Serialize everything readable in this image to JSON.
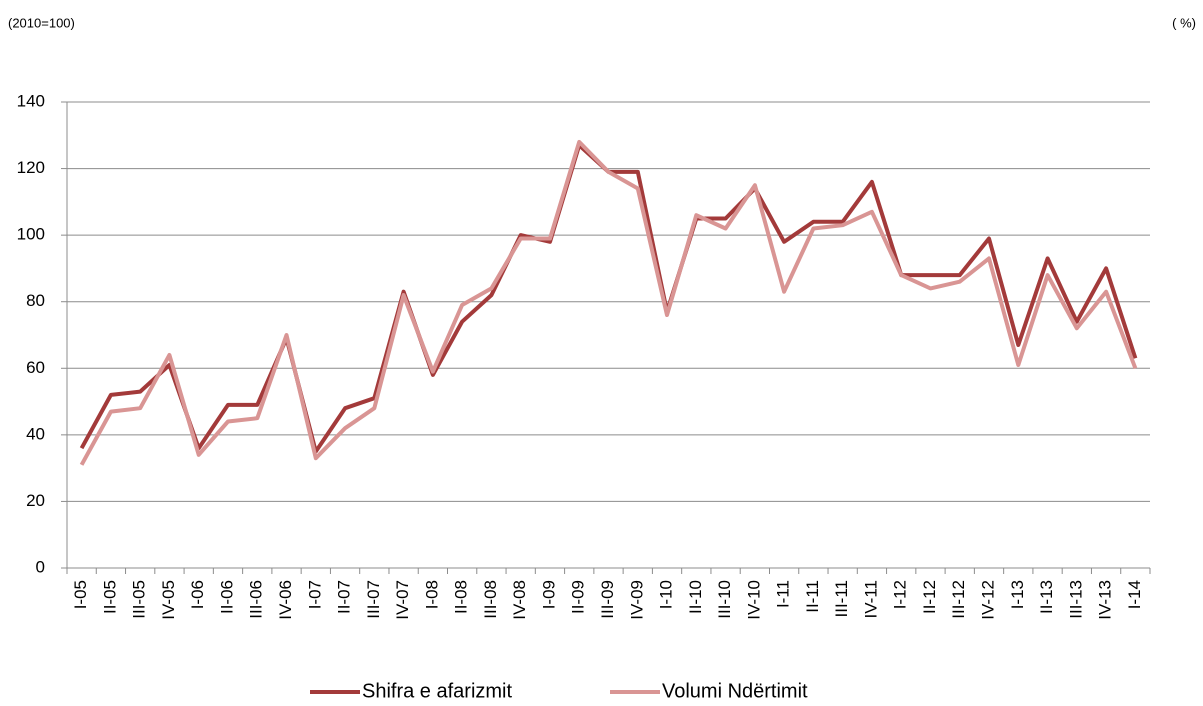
{
  "chart_data": {
    "type": "line",
    "index_note": "(2010=100)",
    "unit_note": "( %)",
    "categories": [
      "I-05",
      "II-05",
      "III-05",
      "IV-05",
      "I-06",
      "II-06",
      "III-06",
      "IV-06",
      "I-07",
      "II-07",
      "III-07",
      "IV-07",
      "I-08",
      "II-08",
      "III-08",
      "IV-08",
      "I-09",
      "II-09",
      "III-09",
      "IV-09",
      "I-10",
      "II-10",
      "III-10",
      "IV-10",
      "I-11",
      "II-11",
      "III-11",
      "IV-11",
      "I-12",
      "II-12",
      "III-12",
      "IV-12",
      "I-13",
      "II-13",
      "III-13",
      "IV-13",
      "I-14"
    ],
    "series": [
      {
        "name": "Shifra e afarizmit",
        "color": "#a33a3a",
        "values": [
          36,
          52,
          53,
          61,
          36,
          49,
          49,
          69,
          35,
          48,
          51,
          83,
          58,
          74,
          82,
          100,
          98,
          127,
          119,
          119,
          77,
          105,
          105,
          114,
          98,
          104,
          104,
          116,
          88,
          88,
          88,
          99,
          67,
          93,
          74,
          90,
          63
        ]
      },
      {
        "name": "Volumi Ndërtimit",
        "color": "#d99594",
        "values": [
          31,
          47,
          48,
          64,
          34,
          44,
          45,
          70,
          33,
          42,
          48,
          82,
          59,
          79,
          84,
          99,
          99,
          128,
          119,
          114,
          76,
          106,
          102,
          115,
          83,
          102,
          103,
          107,
          88,
          84,
          86,
          93,
          61,
          88,
          72,
          83,
          60
        ]
      }
    ],
    "ylim": [
      0,
      140
    ],
    "yticks": [
      0,
      20,
      40,
      60,
      80,
      100,
      120,
      140
    ],
    "grid": true,
    "legend": "bottom"
  }
}
